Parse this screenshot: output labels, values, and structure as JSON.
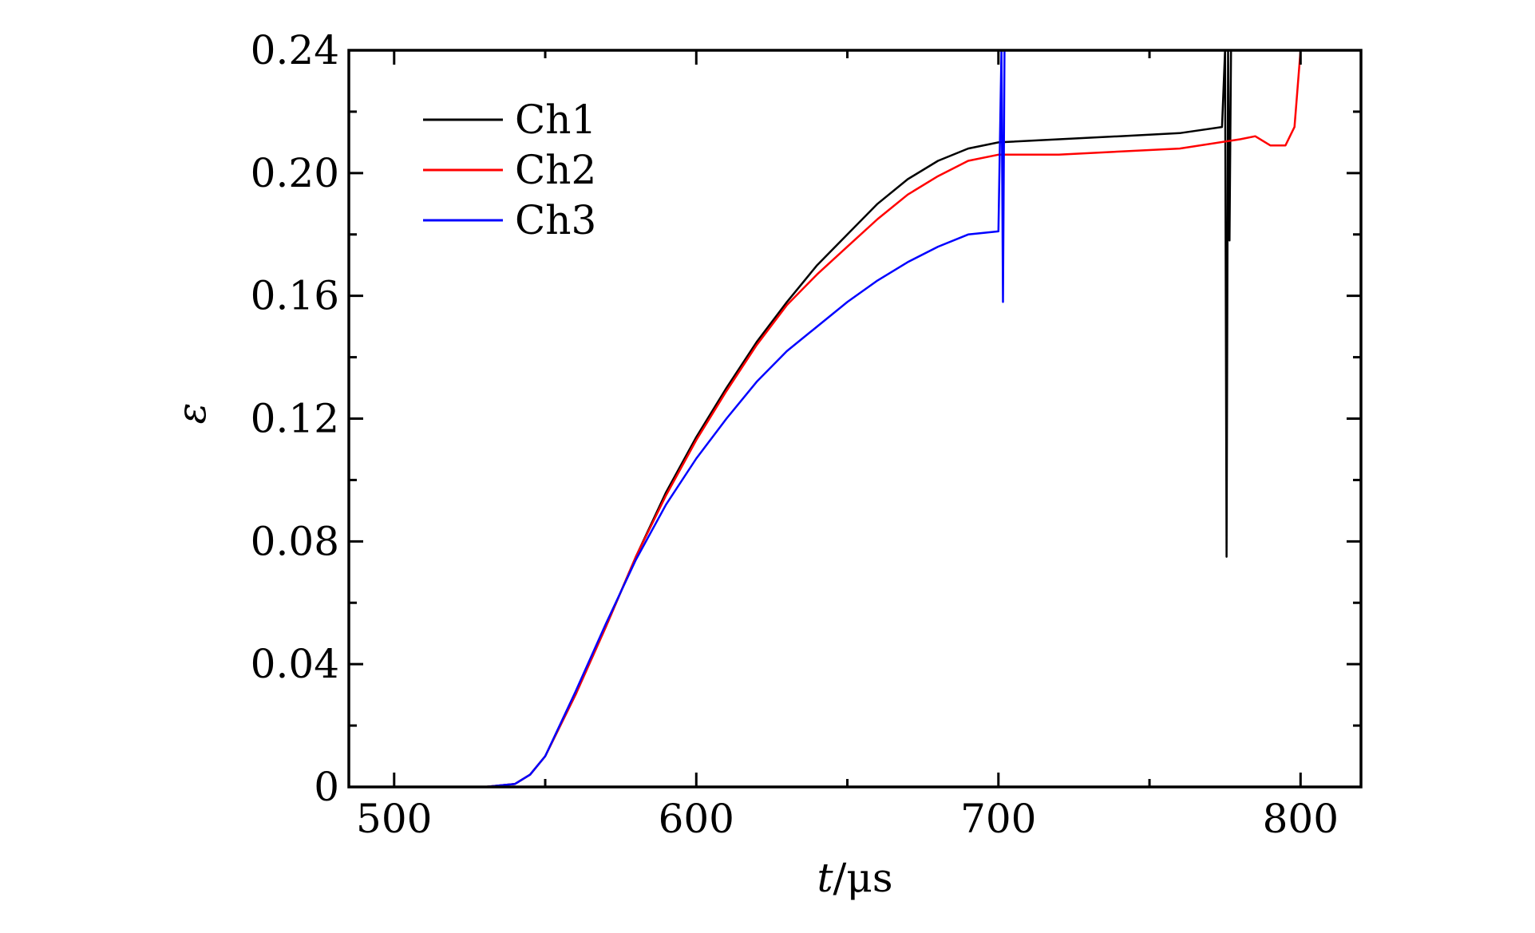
{
  "chart_data": {
    "type": "line",
    "xlabel_italic": "t",
    "xlabel_unit": "/μs",
    "ylabel": "ε",
    "xlim": [
      485,
      820
    ],
    "ylim": [
      0,
      0.24
    ],
    "x_ticks": [
      500,
      600,
      700,
      800
    ],
    "x_tick_labels": [
      "500",
      "600",
      "700",
      "800"
    ],
    "y_ticks": [
      0,
      0.04,
      0.08,
      0.12,
      0.16,
      0.2,
      0.24
    ],
    "y_tick_labels": [
      "0",
      "0.04",
      "0.08",
      "0.12",
      "0.16",
      "0.20",
      "0.24"
    ],
    "grid": false,
    "legend_position": "top-left",
    "series": [
      {
        "name": "Ch1",
        "color": "#000000",
        "x": [
          485,
          530,
          540,
          545,
          550,
          560,
          570,
          580,
          590,
          600,
          610,
          620,
          630,
          640,
          650,
          660,
          670,
          680,
          690,
          700,
          720,
          740,
          760,
          774,
          775,
          775.5,
          776,
          776.5,
          777
        ],
        "y": [
          0,
          0,
          0.001,
          0.004,
          0.01,
          0.03,
          0.052,
          0.075,
          0.096,
          0.114,
          0.13,
          0.145,
          0.158,
          0.17,
          0.18,
          0.19,
          0.198,
          0.204,
          0.208,
          0.21,
          0.211,
          0.212,
          0.213,
          0.215,
          0.24,
          0.075,
          0.24,
          0.178,
          0.24
        ]
      },
      {
        "name": "Ch2",
        "color": "#ff0000",
        "x": [
          485,
          530,
          540,
          545,
          550,
          560,
          570,
          580,
          590,
          600,
          610,
          620,
          630,
          640,
          650,
          660,
          670,
          680,
          690,
          700,
          720,
          740,
          760,
          780,
          785,
          790,
          795,
          798,
          800
        ],
        "y": [
          0,
          0,
          0.001,
          0.004,
          0.01,
          0.03,
          0.052,
          0.075,
          0.095,
          0.113,
          0.129,
          0.144,
          0.157,
          0.167,
          0.176,
          0.185,
          0.193,
          0.199,
          0.204,
          0.206,
          0.206,
          0.207,
          0.208,
          0.211,
          0.212,
          0.209,
          0.209,
          0.215,
          0.24
        ]
      },
      {
        "name": "Ch3",
        "color": "#0000ff",
        "x": [
          485,
          530,
          540,
          545,
          550,
          560,
          570,
          580,
          590,
          600,
          610,
          620,
          630,
          640,
          650,
          660,
          670,
          680,
          690,
          700,
          701,
          701.5,
          702
        ],
        "y": [
          0,
          0,
          0.001,
          0.004,
          0.01,
          0.031,
          0.053,
          0.074,
          0.092,
          0.107,
          0.12,
          0.132,
          0.142,
          0.15,
          0.158,
          0.165,
          0.171,
          0.176,
          0.18,
          0.181,
          0.24,
          0.158,
          0.24
        ]
      }
    ]
  }
}
